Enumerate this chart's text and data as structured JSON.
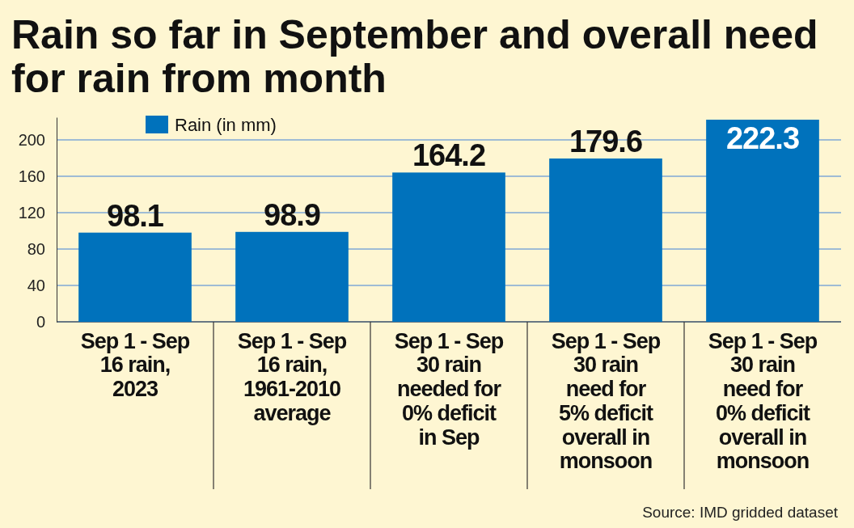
{
  "chart_data": {
    "type": "bar",
    "title": "Rain so far in September and overall need for rain from month",
    "categories": [
      "Sep 1 - Sep 16 rain, 2023",
      "Sep 1 - Sep 16 rain, 1961-2010 average",
      "Sep 1 - Sep 30 rain needed for 0% deficit in Sep",
      "Sep 1 - Sep 30 rain need for 5% deficit overall in monsoon",
      "Sep 1 - Sep 30 rain need for 0% deficit overall in monsoon"
    ],
    "series": [
      {
        "name": "Rain (in mm)",
        "color": "#0072bc",
        "values": [
          98.1,
          98.9,
          164.2,
          179.6,
          222.3
        ]
      }
    ],
    "ylim": [
      0,
      225
    ],
    "yticks": [
      0,
      40,
      80,
      120,
      160,
      200
    ],
    "grid": "y",
    "legend": "top left",
    "data_labels": true,
    "annotations": [
      "Source: IMD gridded dataset"
    ]
  }
}
